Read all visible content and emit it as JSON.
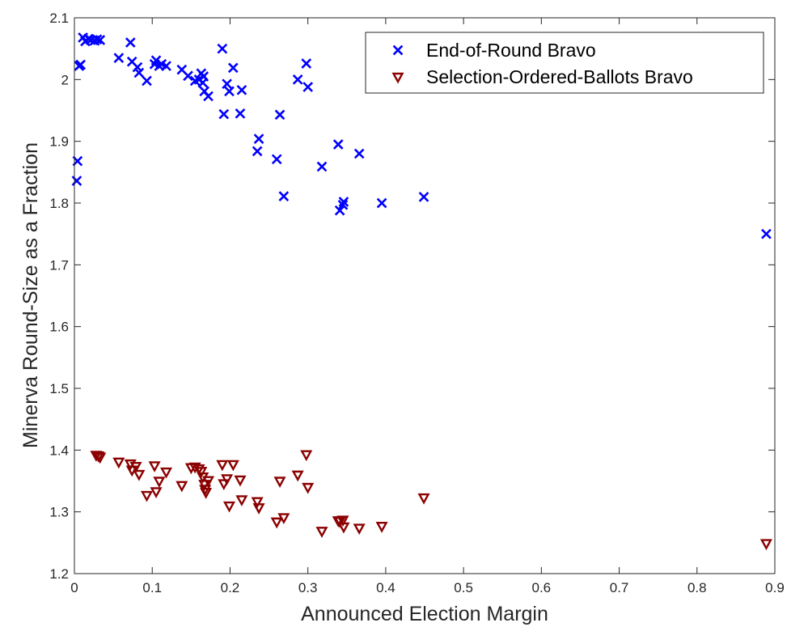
{
  "chart_data": {
    "type": "scatter",
    "title": "",
    "xlabel": "Announced Election Margin",
    "ylabel": "Minerva Round-Size as a Fraction",
    "xlim": [
      0,
      0.9
    ],
    "ylim": [
      1.2,
      2.1
    ],
    "xticks": [
      "0",
      "0.1",
      "0.2",
      "0.3",
      "0.4",
      "0.5",
      "0.6",
      "0.7",
      "0.8",
      "0.9"
    ],
    "yticks": [
      "1.2",
      "1.3",
      "1.4",
      "1.5",
      "1.6",
      "1.7",
      "1.8",
      "1.9",
      "2",
      "2.1"
    ],
    "grid": false,
    "box": true,
    "legend_position": "top-right",
    "series": [
      {
        "name": "End-of-Round Bravo",
        "marker": "x",
        "color": "#0000ff",
        "points": [
          [
            0.003,
            1.836
          ],
          [
            0.004,
            1.868
          ],
          [
            0.006,
            2.022
          ],
          [
            0.008,
            2.024
          ],
          [
            0.011,
            2.068
          ],
          [
            0.014,
            2.062
          ],
          [
            0.018,
            2.066
          ],
          [
            0.021,
            2.064
          ],
          [
            0.026,
            2.063
          ],
          [
            0.029,
            2.065
          ],
          [
            0.033,
            2.064
          ],
          [
            0.057,
            2.035
          ],
          [
            0.072,
            2.06
          ],
          [
            0.074,
            2.029
          ],
          [
            0.081,
            2.02
          ],
          [
            0.083,
            2.011
          ],
          [
            0.093,
            1.998
          ],
          [
            0.103,
            2.025
          ],
          [
            0.105,
            2.031
          ],
          [
            0.109,
            2.022
          ],
          [
            0.112,
            2.025
          ],
          [
            0.118,
            2.022
          ],
          [
            0.138,
            2.016
          ],
          [
            0.146,
            2.006
          ],
          [
            0.155,
            1.998
          ],
          [
            0.16,
            2.0
          ],
          [
            0.163,
            2.01
          ],
          [
            0.165,
            1.995
          ],
          [
            0.166,
            2.005
          ],
          [
            0.167,
            1.981
          ],
          [
            0.172,
            1.973
          ],
          [
            0.19,
            2.05
          ],
          [
            0.192,
            1.944
          ],
          [
            0.196,
            1.993
          ],
          [
            0.199,
            1.981
          ],
          [
            0.204,
            2.019
          ],
          [
            0.213,
            1.945
          ],
          [
            0.215,
            1.983
          ],
          [
            0.235,
            1.884
          ],
          [
            0.237,
            1.904
          ],
          [
            0.26,
            1.871
          ],
          [
            0.264,
            1.943
          ],
          [
            0.269,
            1.811
          ],
          [
            0.287,
            2.0
          ],
          [
            0.298,
            2.026
          ],
          [
            0.3,
            1.988
          ],
          [
            0.318,
            1.859
          ],
          [
            0.339,
            1.895
          ],
          [
            0.341,
            1.788
          ],
          [
            0.345,
            1.797
          ],
          [
            0.346,
            1.802
          ],
          [
            0.366,
            1.88
          ],
          [
            0.395,
            1.8
          ],
          [
            0.449,
            1.81
          ],
          [
            0.889,
            1.75
          ]
        ]
      },
      {
        "name": "Selection-Ordered-Ballots Bravo",
        "marker": "triangle-down",
        "color": "#8b0000",
        "points": [
          [
            0.028,
            1.392
          ],
          [
            0.031,
            1.391
          ],
          [
            0.033,
            1.389
          ],
          [
            0.057,
            1.381
          ],
          [
            0.072,
            1.378
          ],
          [
            0.074,
            1.368
          ],
          [
            0.079,
            1.374
          ],
          [
            0.083,
            1.361
          ],
          [
            0.093,
            1.327
          ],
          [
            0.103,
            1.375
          ],
          [
            0.105,
            1.333
          ],
          [
            0.109,
            1.35
          ],
          [
            0.118,
            1.365
          ],
          [
            0.138,
            1.343
          ],
          [
            0.15,
            1.372
          ],
          [
            0.155,
            1.373
          ],
          [
            0.16,
            1.37
          ],
          [
            0.163,
            1.366
          ],
          [
            0.165,
            1.357
          ],
          [
            0.167,
            1.345
          ],
          [
            0.168,
            1.337
          ],
          [
            0.169,
            1.332
          ],
          [
            0.172,
            1.351
          ],
          [
            0.19,
            1.377
          ],
          [
            0.192,
            1.346
          ],
          [
            0.196,
            1.354
          ],
          [
            0.199,
            1.31
          ],
          [
            0.204,
            1.377
          ],
          [
            0.213,
            1.352
          ],
          [
            0.215,
            1.32
          ],
          [
            0.235,
            1.317
          ],
          [
            0.237,
            1.307
          ],
          [
            0.26,
            1.284
          ],
          [
            0.264,
            1.35
          ],
          [
            0.269,
            1.291
          ],
          [
            0.287,
            1.36
          ],
          [
            0.298,
            1.393
          ],
          [
            0.3,
            1.34
          ],
          [
            0.318,
            1.269
          ],
          [
            0.339,
            1.286
          ],
          [
            0.341,
            1.285
          ],
          [
            0.345,
            1.287
          ],
          [
            0.346,
            1.276
          ],
          [
            0.366,
            1.274
          ],
          [
            0.395,
            1.277
          ],
          [
            0.449,
            1.323
          ],
          [
            0.889,
            1.249
          ]
        ]
      }
    ]
  }
}
